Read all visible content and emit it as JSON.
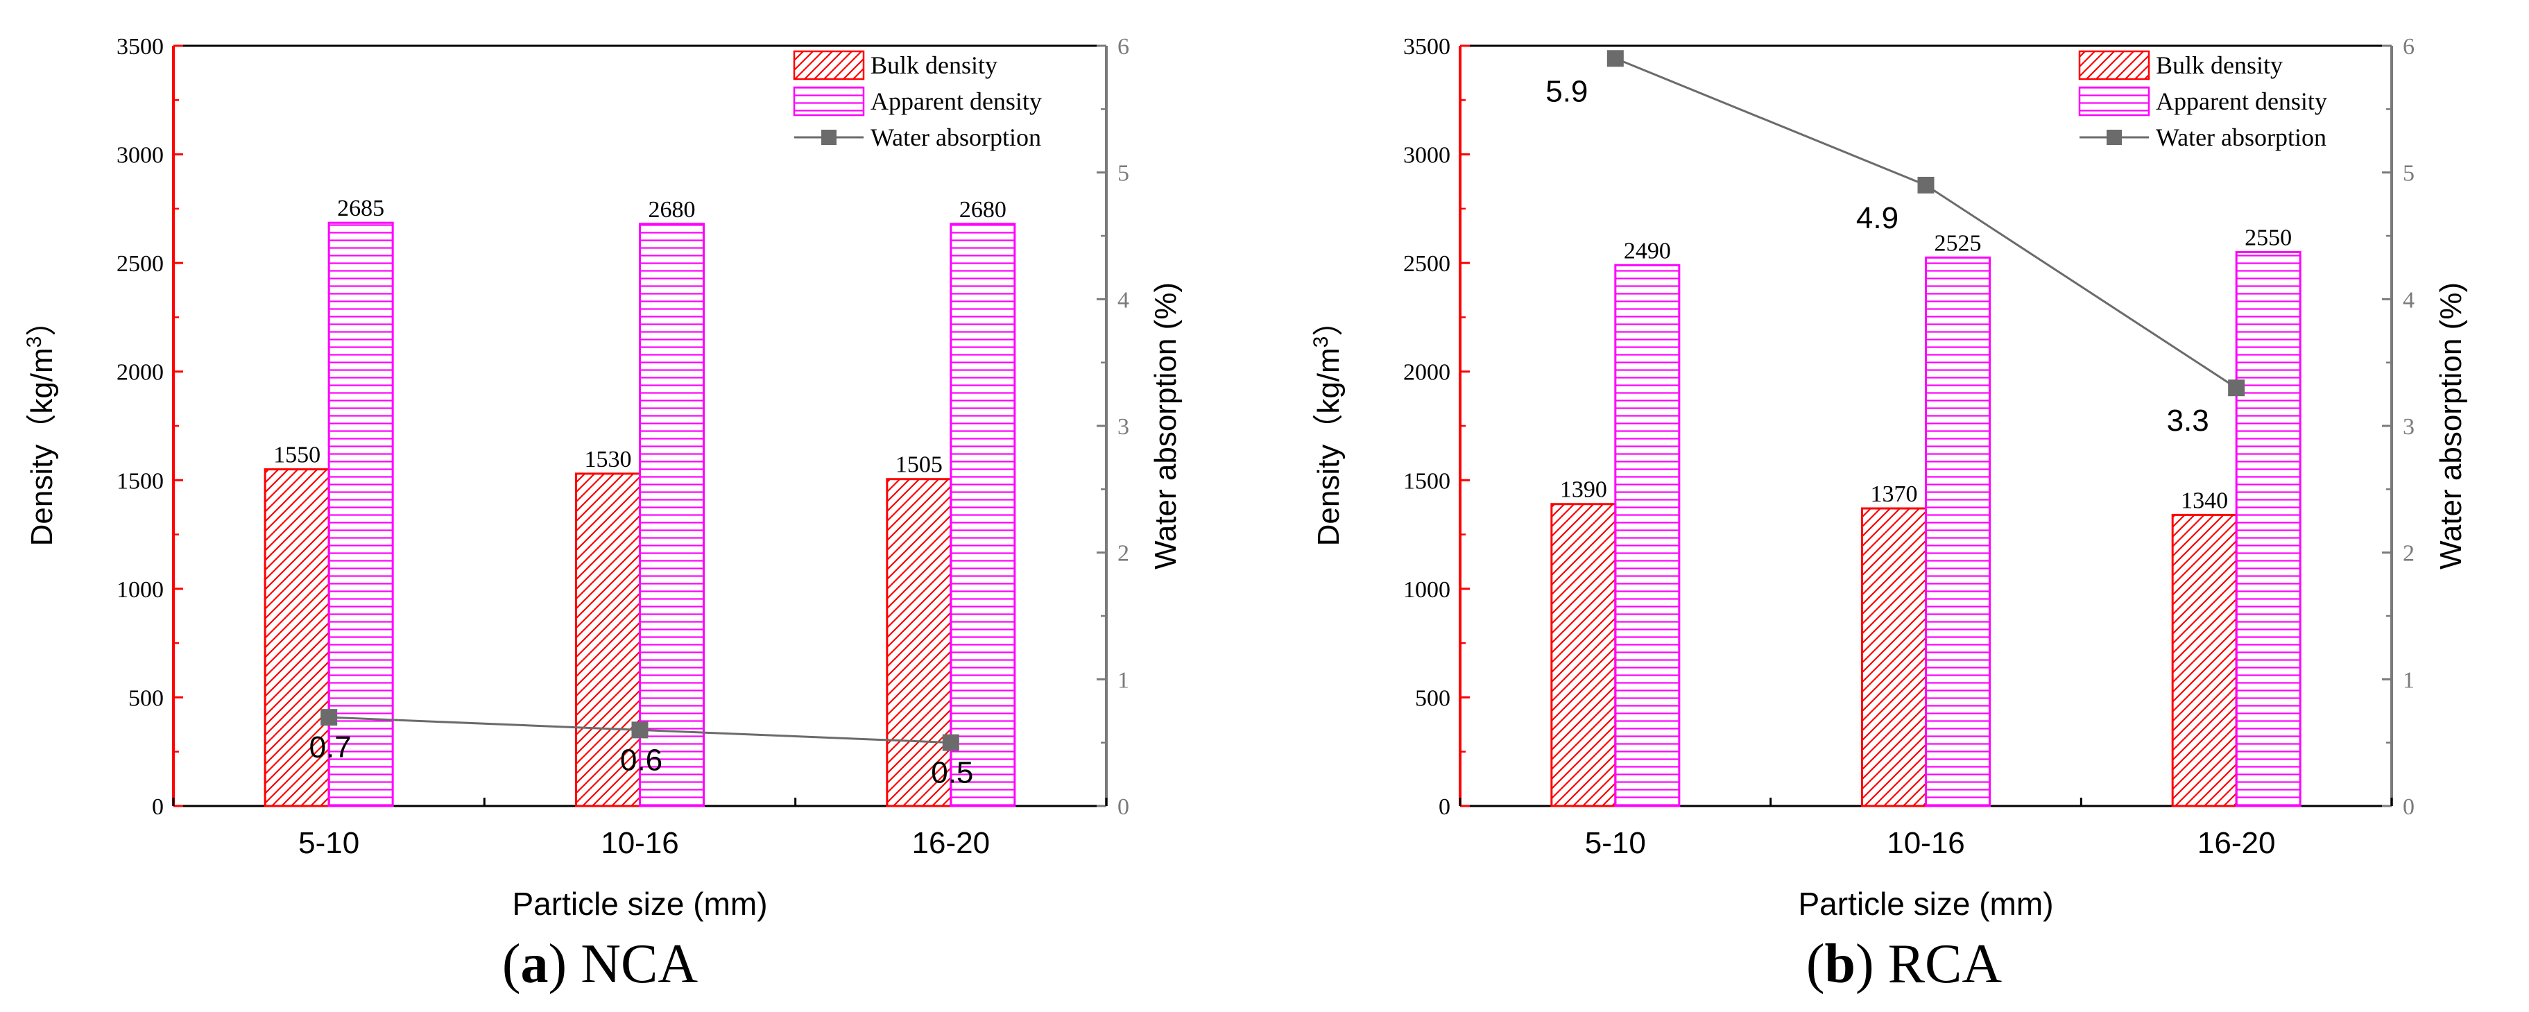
{
  "chart_data": [
    {
      "type": "bar",
      "panel_letter": "a",
      "panel_name": "NCA",
      "categories": [
        "5-10",
        "10-16",
        "16-20"
      ],
      "xlabel": "Particle size (mm)",
      "ylabel": "Density（kg/m",
      "ylabel_sup": "3",
      "ylabel_close": "）",
      "y2label": "Water absorption (%)",
      "ylim": [
        0,
        3500
      ],
      "yticks": [
        0,
        500,
        1000,
        1500,
        2000,
        2500,
        3000,
        3500
      ],
      "y2lim": [
        0,
        6
      ],
      "y2ticks": [
        0,
        1,
        2,
        3,
        4,
        5,
        6
      ],
      "series": [
        {
          "name": "Bulk density",
          "kind": "bar",
          "axis": "left",
          "color": "#ff0000",
          "pattern": "diagonal",
          "values": [
            1550,
            1530,
            1505
          ]
        },
        {
          "name": "Apparent density",
          "kind": "bar",
          "axis": "left",
          "color": "#ff00ff",
          "pattern": "horizontal",
          "values": [
            2685,
            2680,
            2680
          ]
        },
        {
          "name": "Water absorption",
          "kind": "line",
          "axis": "right",
          "color": "#6b6b6b",
          "values": [
            0.7,
            0.6,
            0.5
          ],
          "labels": [
            "0.7",
            "0.6",
            "0.5"
          ]
        }
      ],
      "bar_labels": {
        "Bulk density": [
          "1550",
          "1530",
          "1505"
        ],
        "Apparent density": [
          "2685",
          "2680",
          "2680"
        ]
      },
      "legend_position": "top-right"
    },
    {
      "type": "bar",
      "panel_letter": "b",
      "panel_name": "RCA",
      "categories": [
        "5-10",
        "10-16",
        "16-20"
      ],
      "xlabel": "Particle size (mm)",
      "ylabel": "Density（kg/m",
      "ylabel_sup": "3",
      "ylabel_close": "）",
      "y2label": "Water absorption (%)",
      "ylim": [
        0,
        3500
      ],
      "yticks": [
        0,
        500,
        1000,
        1500,
        2000,
        2500,
        3000,
        3500
      ],
      "y2lim": [
        0,
        6
      ],
      "y2ticks": [
        0,
        1,
        2,
        3,
        4,
        5,
        6
      ],
      "series": [
        {
          "name": "Bulk density",
          "kind": "bar",
          "axis": "left",
          "color": "#ff0000",
          "pattern": "diagonal",
          "values": [
            1390,
            1370,
            1340
          ]
        },
        {
          "name": "Apparent density",
          "kind": "bar",
          "axis": "left",
          "color": "#ff00ff",
          "pattern": "horizontal",
          "values": [
            2490,
            2525,
            2550
          ]
        },
        {
          "name": "Water absorption",
          "kind": "line",
          "axis": "right",
          "color": "#6b6b6b",
          "values": [
            5.9,
            4.9,
            3.3
          ],
          "labels": [
            "5.9",
            "4.9",
            "3.3"
          ]
        }
      ],
      "bar_labels": {
        "Bulk density": [
          "1390",
          "1370",
          "1340"
        ],
        "Apparent density": [
          "2490",
          "2525",
          "2550"
        ]
      },
      "legend_position": "top-right"
    }
  ]
}
